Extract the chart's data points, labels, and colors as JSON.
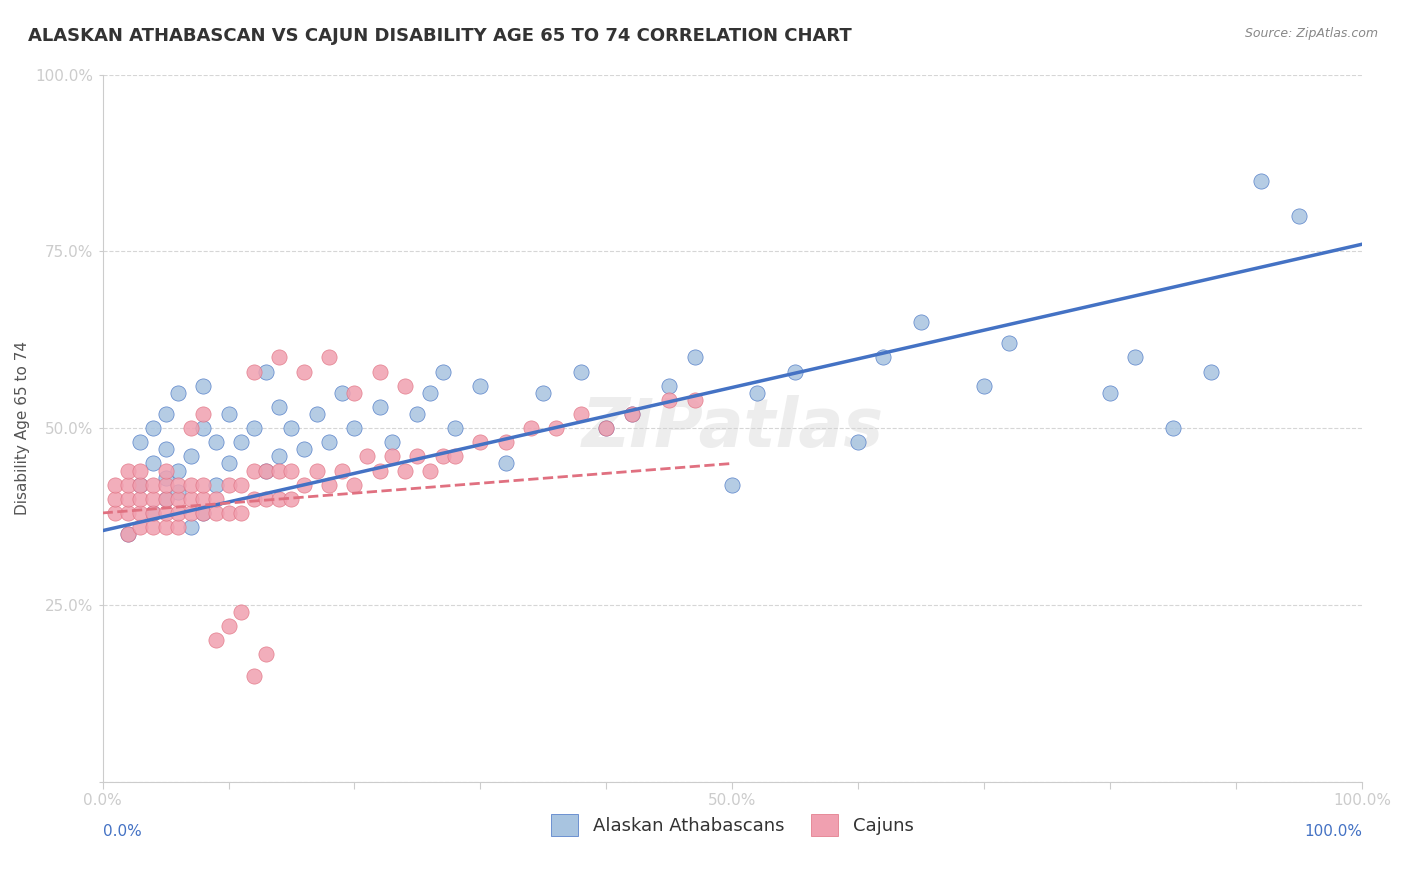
{
  "title": "ALASKAN ATHABASCAN VS CAJUN DISABILITY AGE 65 TO 74 CORRELATION CHART",
  "source_text": "Source: ZipAtlas.com",
  "xlabel": "",
  "ylabel": "Disability Age 65 to 74",
  "xlim": [
    0.0,
    1.0
  ],
  "ylim": [
    0.0,
    1.0
  ],
  "xticks": [
    0.0,
    0.1,
    0.2,
    0.3,
    0.4,
    0.5,
    0.6,
    0.7,
    0.8,
    0.9,
    1.0
  ],
  "xticklabels": [
    "0.0%",
    "",
    "",
    "",
    "",
    "50.0%",
    "",
    "",
    "",
    "",
    "100.0%"
  ],
  "yticks": [
    0.0,
    0.25,
    0.5,
    0.75,
    1.0
  ],
  "yticklabels": [
    "",
    "25.0%",
    "50.0%",
    "75.0%",
    "100.0%"
  ],
  "blue_color": "#a8c4e0",
  "pink_color": "#f0a0b0",
  "blue_line_color": "#4472c4",
  "pink_line_color": "#e07080",
  "watermark": "ZIPatlas",
  "blue_scatter_x": [
    0.02,
    0.03,
    0.03,
    0.04,
    0.04,
    0.04,
    0.05,
    0.05,
    0.05,
    0.05,
    0.06,
    0.06,
    0.06,
    0.07,
    0.07,
    0.08,
    0.08,
    0.08,
    0.09,
    0.09,
    0.1,
    0.1,
    0.11,
    0.12,
    0.13,
    0.13,
    0.14,
    0.14,
    0.15,
    0.16,
    0.17,
    0.18,
    0.19,
    0.2,
    0.22,
    0.23,
    0.25,
    0.26,
    0.27,
    0.28,
    0.3,
    0.32,
    0.35,
    0.38,
    0.4,
    0.42,
    0.45,
    0.47,
    0.5,
    0.52,
    0.55,
    0.6,
    0.62,
    0.65,
    0.7,
    0.72,
    0.8,
    0.82,
    0.85,
    0.88,
    0.92,
    0.95
  ],
  "blue_scatter_y": [
    0.35,
    0.42,
    0.48,
    0.38,
    0.45,
    0.5,
    0.4,
    0.43,
    0.47,
    0.52,
    0.41,
    0.44,
    0.55,
    0.36,
    0.46,
    0.38,
    0.5,
    0.56,
    0.42,
    0.48,
    0.45,
    0.52,
    0.48,
    0.5,
    0.44,
    0.58,
    0.46,
    0.53,
    0.5,
    0.47,
    0.52,
    0.48,
    0.55,
    0.5,
    0.53,
    0.48,
    0.52,
    0.55,
    0.58,
    0.5,
    0.56,
    0.45,
    0.55,
    0.58,
    0.5,
    0.52,
    0.56,
    0.6,
    0.42,
    0.55,
    0.58,
    0.48,
    0.6,
    0.65,
    0.56,
    0.62,
    0.55,
    0.6,
    0.5,
    0.58,
    0.85,
    0.8
  ],
  "pink_scatter_x": [
    0.01,
    0.01,
    0.01,
    0.02,
    0.02,
    0.02,
    0.02,
    0.02,
    0.03,
    0.03,
    0.03,
    0.03,
    0.03,
    0.04,
    0.04,
    0.04,
    0.04,
    0.05,
    0.05,
    0.05,
    0.05,
    0.05,
    0.06,
    0.06,
    0.06,
    0.06,
    0.07,
    0.07,
    0.07,
    0.08,
    0.08,
    0.08,
    0.09,
    0.09,
    0.1,
    0.1,
    0.11,
    0.11,
    0.12,
    0.12,
    0.13,
    0.13,
    0.14,
    0.14,
    0.15,
    0.15,
    0.16,
    0.17,
    0.18,
    0.19,
    0.2,
    0.21,
    0.22,
    0.23,
    0.24,
    0.25,
    0.26,
    0.27,
    0.28,
    0.3,
    0.32,
    0.34,
    0.36,
    0.38,
    0.4,
    0.42,
    0.45,
    0.47,
    0.12,
    0.14,
    0.16,
    0.18,
    0.2,
    0.22,
    0.24,
    0.07,
    0.08,
    0.09,
    0.1,
    0.11,
    0.12,
    0.13
  ],
  "pink_scatter_y": [
    0.38,
    0.4,
    0.42,
    0.35,
    0.38,
    0.4,
    0.42,
    0.44,
    0.36,
    0.38,
    0.4,
    0.42,
    0.44,
    0.36,
    0.38,
    0.4,
    0.42,
    0.36,
    0.38,
    0.4,
    0.42,
    0.44,
    0.36,
    0.38,
    0.4,
    0.42,
    0.38,
    0.4,
    0.42,
    0.38,
    0.4,
    0.42,
    0.38,
    0.4,
    0.38,
    0.42,
    0.38,
    0.42,
    0.4,
    0.44,
    0.4,
    0.44,
    0.4,
    0.44,
    0.4,
    0.44,
    0.42,
    0.44,
    0.42,
    0.44,
    0.42,
    0.46,
    0.44,
    0.46,
    0.44,
    0.46,
    0.44,
    0.46,
    0.46,
    0.48,
    0.48,
    0.5,
    0.5,
    0.52,
    0.5,
    0.52,
    0.54,
    0.54,
    0.58,
    0.6,
    0.58,
    0.6,
    0.55,
    0.58,
    0.56,
    0.5,
    0.52,
    0.2,
    0.22,
    0.24,
    0.15,
    0.18
  ],
  "blue_line_x": [
    0.0,
    1.0
  ],
  "blue_line_y": [
    0.355,
    0.76
  ],
  "pink_line_x": [
    0.0,
    0.5
  ],
  "pink_line_y": [
    0.38,
    0.45
  ],
  "title_fontsize": 13,
  "axis_fontsize": 11,
  "tick_fontsize": 11,
  "legend_fontsize": 13,
  "watermark_fontsize": 48,
  "background_color": "#ffffff",
  "grid_color": "#cccccc"
}
